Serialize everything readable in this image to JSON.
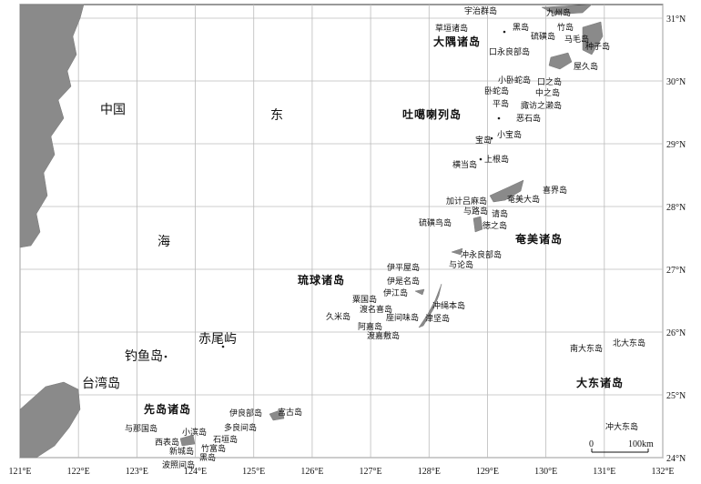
{
  "lon_ticks": [
    {
      "value": 121,
      "label": "121°E"
    },
    {
      "value": 122,
      "label": "122°E"
    },
    {
      "value": 123,
      "label": "123°E"
    },
    {
      "value": 124,
      "label": "124°E"
    },
    {
      "value": 125,
      "label": "125°E"
    },
    {
      "value": 126,
      "label": "126°E"
    },
    {
      "value": 127,
      "label": "127°E"
    },
    {
      "value": 128,
      "label": "128°E"
    },
    {
      "value": 129,
      "label": "129°E"
    },
    {
      "value": 130,
      "label": "130°E"
    },
    {
      "value": 131,
      "label": "131°E"
    },
    {
      "value": 132,
      "label": "132°E"
    }
  ],
  "lat_ticks": [
    {
      "value": 24,
      "label": "24°N"
    },
    {
      "value": 25,
      "label": "25°N"
    },
    {
      "value": 26,
      "label": "26°N"
    },
    {
      "value": 27,
      "label": "27°N"
    },
    {
      "value": 28,
      "label": "28°N"
    },
    {
      "value": 29,
      "label": "29°N"
    },
    {
      "value": 30,
      "label": "30°N"
    },
    {
      "value": 31,
      "label": "31°N"
    }
  ],
  "regions": [
    "中国",
    "东",
    "海"
  ],
  "groups": [
    "大隅诸岛",
    "吐噶喇列岛",
    "奄美诸岛",
    "琉球诸岛",
    "大东诸岛",
    "先岛诸岛"
  ],
  "places": [
    "宇治群岛",
    "九州岛",
    "草垣诸岛",
    "黑岛",
    "竹岛",
    "硫磺岛",
    "马毛岛",
    "种子岛",
    "口永良部岛",
    "屋久岛",
    "小卧蛇岛",
    "口之岛",
    "卧蛇岛",
    "中之岛",
    "平岛",
    "諏访之濑岛",
    "恶石岛",
    "小宝岛",
    "宝岛",
    "上根岛",
    "横当岛",
    "喜界岛",
    "加计吕麻岛",
    "奄美大岛",
    "请岛",
    "与路岛",
    "徳之岛",
    "硫磺鸟岛",
    "冲永良部岛",
    "与论岛",
    "伊平屋岛",
    "伊是名岛",
    "伊江岛",
    "粟国岛",
    "冲绳本岛",
    "渡名喜岛",
    "久米岛",
    "座间味岛",
    "津坚岛",
    "阿嘉岛",
    "渡嘉敷岛",
    "南大东岛",
    "北大东岛",
    "冲大东岛",
    "赤尾屿",
    "钓鱼岛",
    "台湾岛",
    "伊良部岛",
    "宫古岛",
    "多良间岛",
    "与那国岛",
    "小滨岛",
    "石垣岛",
    "西表岛",
    "竹富岛",
    "新城岛",
    "黑岛",
    "波照间岛"
  ],
  "scale_bar": [
    "0",
    "100km"
  ]
}
